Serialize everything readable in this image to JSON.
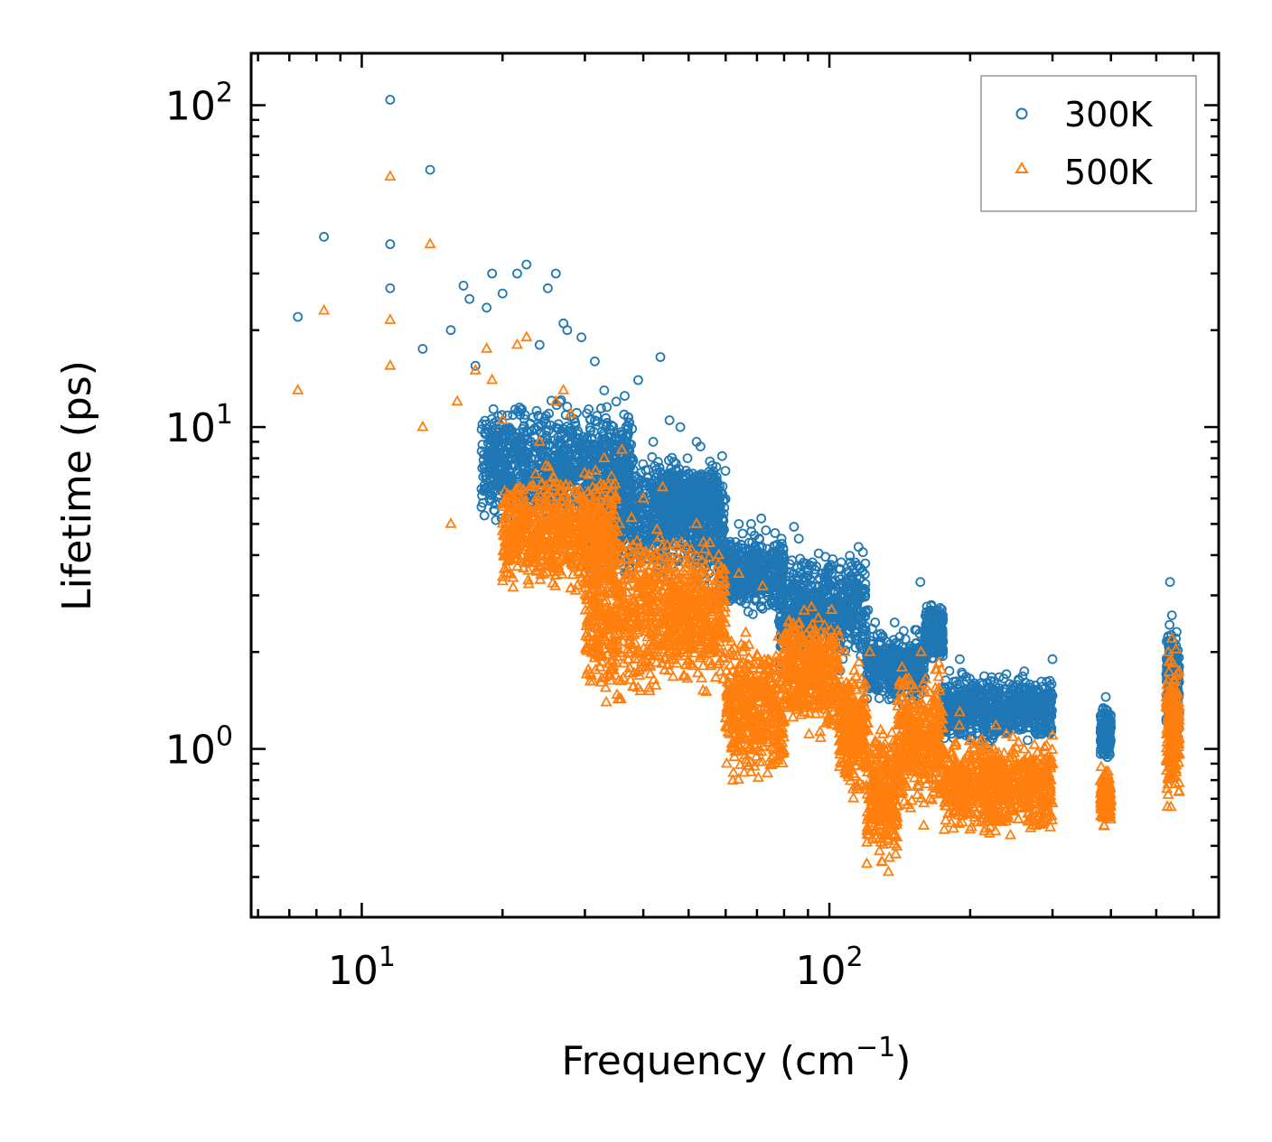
{
  "chart_data": {
    "type": "scatter",
    "title": "",
    "xlabel": "Frequency (cm",
    "xlabel_sup": "−1",
    "xlabel_end": ")",
    "ylabel": "Lifetime (ps)",
    "xscale": "log",
    "yscale": "log",
    "xlim": [
      5.8,
      680
    ],
    "ylim": [
      0.3,
      145
    ],
    "x_ticks": [
      {
        "value": 10,
        "base": "10",
        "exp": "1"
      },
      {
        "value": 100,
        "base": "10",
        "exp": "2"
      }
    ],
    "y_ticks": [
      {
        "value": 1,
        "base": "10",
        "exp": "0"
      },
      {
        "value": 10,
        "base": "10",
        "exp": "1"
      },
      {
        "value": 100,
        "base": "10",
        "exp": "2"
      }
    ],
    "legend_position": "top-right",
    "series": [
      {
        "name": "300K",
        "marker": "circle",
        "color": "#1f77b4",
        "x": [
          11.5,
          14,
          8.3,
          11.5,
          11.5,
          7.3,
          13.5,
          15.5,
          16.5,
          17,
          17.5,
          18.5,
          19,
          20,
          21.5,
          22.5,
          24,
          25,
          26,
          27,
          27.5,
          29.5,
          31.5,
          33,
          35,
          36.5,
          39,
          42,
          43.5,
          45.5,
          48,
          52,
          53,
          56.5,
          64,
          68,
          71.5,
          79,
          84,
          86,
          92,
          106,
          121,
          156.5,
          190,
          300,
          390,
          535,
          540
        ],
        "y": [
          104,
          63,
          39,
          37,
          27,
          22,
          17.5,
          20,
          27.5,
          25,
          15.5,
          23.5,
          30,
          26,
          30,
          32,
          18,
          27,
          30,
          21,
          20,
          19,
          16,
          13,
          12,
          12.5,
          14,
          9,
          16.5,
          10.5,
          10,
          9,
          8.7,
          7.3,
          5,
          5,
          5.2,
          4.5,
          4.9,
          4.5,
          3.8,
          3.8,
          2.7,
          3.3,
          1.9,
          1.9,
          1.45,
          3.3,
          2.6
        ],
        "cloud": [
          [
            18,
            38,
            4.5,
            13
          ],
          [
            30,
            60,
            3,
            9
          ],
          [
            42,
            58,
            4.5,
            8
          ],
          [
            58,
            80,
            2.5,
            5
          ],
          [
            78,
            120,
            1.7,
            4.5
          ],
          [
            120,
            160,
            1.3,
            2.5
          ],
          [
            160,
            175,
            1.8,
            3.0
          ],
          [
            175,
            300,
            1.0,
            1.8
          ],
          [
            380,
            400,
            0.9,
            1.4
          ],
          [
            525,
            560,
            0.85,
            3.0
          ]
        ]
      },
      {
        "name": "500K",
        "marker": "triangle",
        "color": "#ff7f0e",
        "x": [
          11.5,
          14,
          8.3,
          7.3,
          11.5,
          11.5,
          13.5,
          15.5,
          16,
          17.5,
          18.5,
          19,
          20,
          21.5,
          22.5,
          24,
          26,
          27,
          28,
          33,
          36,
          40,
          44,
          52,
          58,
          64,
          72,
          82,
          88,
          108,
          122,
          157,
          190,
          300,
          390,
          540
        ],
        "y": [
          60,
          37,
          23,
          13,
          21.5,
          15.5,
          10,
          5,
          12,
          15,
          17.5,
          14,
          10.5,
          18,
          19,
          9,
          12,
          13,
          11,
          8,
          8.5,
          6,
          6.5,
          5,
          4,
          3.5,
          3.2,
          2.5,
          2.2,
          2.0,
          2.0,
          2.0,
          1.3,
          1.1,
          0.85,
          2.2
        ],
        "cloud": [
          [
            20,
            35,
            2.8,
            8
          ],
          [
            30,
            45,
            1.2,
            6
          ],
          [
            45,
            60,
            1.4,
            5
          ],
          [
            60,
            80,
            0.7,
            2.5
          ],
          [
            80,
            105,
            1.0,
            3.0
          ],
          [
            105,
            120,
            0.65,
            2.0
          ],
          [
            120,
            140,
            0.4,
            1.3
          ],
          [
            140,
            175,
            0.55,
            2.0
          ],
          [
            175,
            300,
            0.5,
            1.2
          ],
          [
            380,
            400,
            0.55,
            0.9
          ],
          [
            525,
            560,
            0.55,
            2.2
          ]
        ]
      }
    ]
  }
}
